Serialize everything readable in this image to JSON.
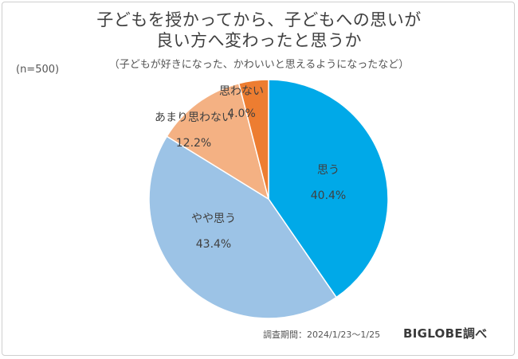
{
  "title_line1": "子どもを授かってから、子どもへの思いが",
  "title_line2": "良い方へ変わったと思うか",
  "subtitle": "（子どもが好きになった、かわいいと思えるようになったなど）",
  "sample_size": "(n=500)",
  "source": "調査期間：2024/1/23～1/25",
  "brand": "BIGLOBE調べ",
  "chart_data": {
    "type": "pie",
    "start_angle_deg": 0,
    "direction": "clockwise",
    "slices": [
      {
        "label": "思う",
        "value": 40.4,
        "display": "40.4%",
        "color": "#00a9e8"
      },
      {
        "label": "やや思う",
        "value": 43.4,
        "display": "43.4%",
        "color": "#9cc3e6"
      },
      {
        "label": "あまり思わない",
        "value": 12.2,
        "display": "12.2%",
        "color": "#f4b183"
      },
      {
        "label": "思わない",
        "value": 4.0,
        "display": "4.0%",
        "color": "#ed7d31"
      }
    ]
  }
}
